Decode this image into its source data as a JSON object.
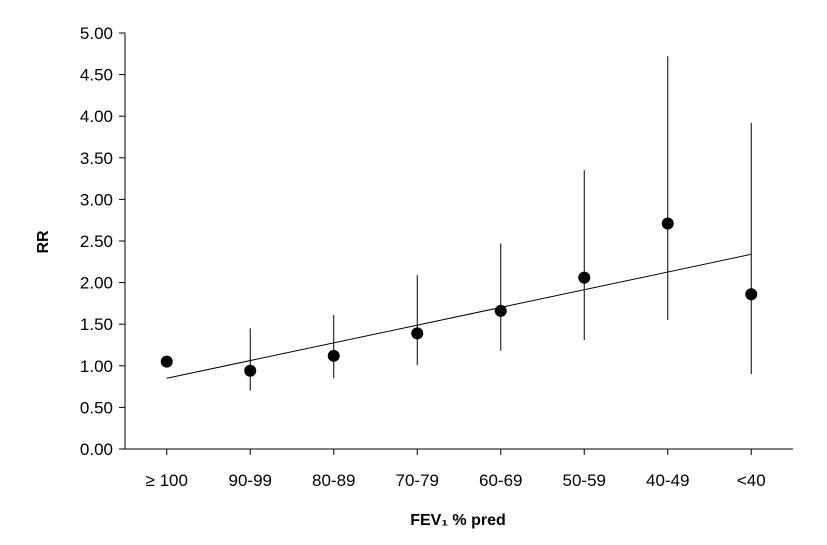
{
  "chart_data": {
    "type": "scatter",
    "xlabel": "FEV₁ % pred",
    "ylabel": "RR",
    "categories": [
      "≥ 100",
      "90-99",
      "80-89",
      "70-79",
      "60-69",
      "50-59",
      "40-49",
      "<40"
    ],
    "ylim": [
      0,
      5
    ],
    "y_ticks": [
      "0.00",
      "0.50",
      "1.00",
      "1.50",
      "2.00",
      "2.50",
      "3.00",
      "3.50",
      "4.00",
      "4.50",
      "5.00"
    ],
    "grid": false,
    "series": [
      {
        "values": [
          1.05,
          0.94,
          1.12,
          1.39,
          1.66,
          2.06,
          2.71,
          1.86
        ],
        "error_low": [
          null,
          0.7,
          0.85,
          1.01,
          1.18,
          1.31,
          1.55,
          0.9
        ],
        "error_high": [
          null,
          1.45,
          1.61,
          2.09,
          2.47,
          3.35,
          4.72,
          3.92
        ]
      }
    ],
    "trend_line": {
      "start": 0.85,
      "end": 2.34
    }
  }
}
